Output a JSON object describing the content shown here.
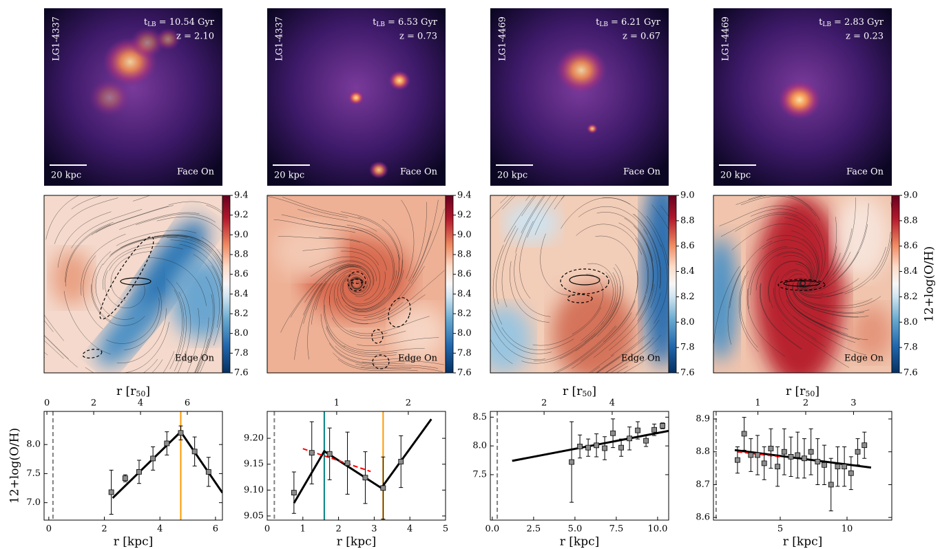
{
  "images": [
    {
      "id": "LG1-4337",
      "lookback_symbol": "t",
      "lookback_sub": "LB",
      "lookback": "= 10.54 Gyr",
      "redshift": "z = 2.10",
      "scale_bar": "20 kpc",
      "view": "Face On"
    },
    {
      "id": "LG1-4337",
      "lookback_symbol": "t",
      "lookback_sub": "LB",
      "lookback": "= 6.53 Gyr",
      "redshift": "z = 0.73",
      "scale_bar": "20 kpc",
      "view": "Face On"
    },
    {
      "id": "LG1-4469",
      "lookback_symbol": "t",
      "lookback_sub": "LB",
      "lookback": "= 6.21 Gyr",
      "redshift": "z = 0.67",
      "scale_bar": "20 kpc",
      "view": "Face On"
    },
    {
      "id": "LG1-4469",
      "lookback_symbol": "t",
      "lookback_sub": "LB",
      "lookback": "= 2.83 Gyr",
      "redshift": "z = 0.23",
      "scale_bar": "20 kpc",
      "view": "Face On"
    }
  ],
  "maps": [
    {
      "view": "Edge On",
      "clim": [
        7.6,
        9.4
      ],
      "colorbar_ticks": [
        7.6,
        7.8,
        {
          "value": 8,
          "label": "8.0"
        },
        8.2,
        8.4,
        8.6,
        8.8,
        {
          "value": 9,
          "label": "9.0"
        },
        9.2,
        9.4
      ]
    },
    {
      "view": "Edge On",
      "clim": [
        7.6,
        9.4
      ],
      "colorbar_ticks": [
        7.6,
        7.8,
        {
          "value": 8,
          "label": "8.0"
        },
        8.2,
        8.4,
        8.6,
        8.8,
        {
          "value": 9,
          "label": "9.0"
        },
        9.2,
        9.4
      ]
    },
    {
      "view": "Edge On",
      "clim": [
        7.6,
        9.0
      ],
      "colorbar_ticks": [
        7.6,
        7.8,
        {
          "value": 8,
          "label": "8.0"
        },
        8.2,
        8.4,
        8.6,
        8.8,
        {
          "value": 9,
          "label": "9.0"
        }
      ]
    },
    {
      "view": "Edge On",
      "clim": [
        7.6,
        9.0
      ],
      "colorbar_ticks": [
        7.6,
        7.8,
        {
          "value": 8,
          "label": "8.0"
        },
        8.2,
        8.4,
        8.6,
        8.8,
        {
          "value": 9,
          "label": "9.0"
        }
      ],
      "colorbar_label": "12+log(O/H)"
    }
  ],
  "chart_data": [
    {
      "type": "errorbar",
      "xlabel": "r [kpc]",
      "ylabel": "12+log(O/H)",
      "x2label": {
        "text": "r [r",
        "sub": "50",
        "end": "]"
      },
      "xlim": [
        -0.17,
        6.25
      ],
      "xticks": [
        0,
        2,
        4,
        6
      ],
      "x2lim": [
        -0.12,
        7.5
      ],
      "x2ticks": [
        0,
        2,
        4,
        6
      ],
      "ylim": [
        6.7,
        8.57
      ],
      "yticks": [
        {
          "value": 7,
          "label": "7.0"
        },
        7.5,
        {
          "value": 8,
          "label": "8.0"
        }
      ],
      "x": [
        2.25,
        2.75,
        3.25,
        3.75,
        4.25,
        4.75,
        5.25,
        5.75
      ],
      "values": [
        7.18,
        7.42,
        7.53,
        7.76,
        8.02,
        8.2,
        7.88,
        7.53
      ],
      "errors": [
        0.38,
        0.06,
        0.2,
        0.2,
        0.2,
        0.12,
        0.25,
        0.25
      ],
      "marker_color": "#8c8c8c",
      "fits": [
        {
          "color": "#000000",
          "dash": false,
          "x": [
            2.3,
            4.75,
            6.25
          ],
          "values": [
            7.08,
            8.22,
            7.17
          ]
        }
      ],
      "vlines": [
        {
          "value": 0.15,
          "color": "#808080",
          "dash": true
        },
        {
          "value": 4.75,
          "color": "#ff9900",
          "dash": false
        }
      ]
    },
    {
      "type": "errorbar",
      "xlabel": "r [kpc]",
      "xlim": [
        0,
        5
      ],
      "xticks": [
        0,
        1,
        2,
        3,
        4,
        5
      ],
      "x2lim": [
        0.03,
        2.52
      ],
      "x2ticks": [
        1,
        2
      ],
      "ylim": [
        9.042,
        9.252
      ],
      "yticks": [
        9.05,
        {
          "value": 9.1,
          "label": "9.10"
        },
        9.15,
        {
          "value": 9.2,
          "label": "9.20"
        }
      ],
      "x": [
        0.75,
        1.25,
        1.75,
        2.25,
        2.75,
        3.25,
        3.75
      ],
      "values": [
        9.095,
        9.172,
        9.17,
        9.152,
        9.124,
        9.104,
        9.155
      ],
      "errors": [
        0.04,
        0.06,
        0.05,
        0.06,
        0.05,
        0.06,
        0.05
      ],
      "marker_color": "#8c8c8c",
      "fits": [
        {
          "color": "#000000",
          "dash": false,
          "x": [
            0.75,
            1.6,
            3.2,
            4.6
          ],
          "values": [
            9.075,
            9.175,
            9.104,
            9.237
          ]
        },
        {
          "color": "#ff0000",
          "dash": true,
          "x": [
            1.0,
            2.9
          ],
          "values": [
            9.18,
            9.136
          ]
        }
      ],
      "vlines": [
        {
          "value": 0.2,
          "color": "#808080",
          "dash": true
        },
        {
          "value": 1.6,
          "color": "#008080",
          "dash": false
        },
        {
          "value": 3.25,
          "color": "#ff9900",
          "dash": false
        }
      ]
    },
    {
      "type": "errorbar",
      "xlabel": "r [kpc]",
      "x2label": {
        "text": "r [r",
        "sub": "50",
        "end": "]"
      },
      "xlim": [
        -0.12,
        10.67
      ],
      "xticks": [
        {
          "value": 0,
          "label": "0.0"
        },
        2.5,
        {
          "value": 5,
          "label": "5.0"
        },
        7.5,
        {
          "value": 10,
          "label": "10.0"
        }
      ],
      "x2lim": [
        0.42,
        5.66
      ],
      "x2ticks": [
        2,
        4
      ],
      "ylim": [
        6.71,
        8.6
      ],
      "yticks": [
        7.5,
        {
          "value": 8,
          "label": "8.0"
        },
        8.5
      ],
      "x": [
        4.8,
        5.3,
        5.8,
        6.3,
        6.8,
        7.3,
        7.8,
        8.3,
        8.8,
        9.3,
        9.8,
        10.3
      ],
      "values": [
        7.72,
        7.99,
        7.97,
        8.01,
        7.96,
        8.22,
        7.97,
        8.13,
        8.27,
        8.09,
        8.28,
        8.35
      ],
      "errors": [
        0.7,
        0.2,
        0.15,
        0.2,
        0.2,
        0.25,
        0.15,
        0.2,
        0.15,
        0.1,
        0.1,
        0.05
      ],
      "marker_color": "#8c8c8c",
      "fits": [
        {
          "color": "#000000",
          "dash": false,
          "x": [
            1.2,
            11
          ],
          "values": [
            7.74,
            8.28
          ]
        }
      ],
      "vlines": [
        {
          "value": 0.3,
          "color": "#808080",
          "dash": true
        }
      ]
    },
    {
      "type": "errorbar",
      "xlabel": "r [kpc]",
      "x2label": {
        "text": "r [r",
        "sub": "50",
        "end": "]"
      },
      "xlim": [
        0,
        13.35
      ],
      "xticks": [
        5,
        10
      ],
      "x2lim": [
        0.07,
        3.8
      ],
      "x2ticks": [
        1,
        2,
        3
      ],
      "ylim": [
        8.592,
        8.923
      ],
      "yticks": [
        8.6,
        8.7,
        8.8,
        8.9
      ],
      "x": [
        1.8,
        2.3,
        2.8,
        3.3,
        3.8,
        4.3,
        4.8,
        5.3,
        5.8,
        6.3,
        6.8,
        7.3,
        7.8,
        8.3,
        8.8,
        9.3,
        9.8,
        10.3,
        10.8,
        11.3
      ],
      "values": [
        8.775,
        8.855,
        8.79,
        8.79,
        8.765,
        8.81,
        8.755,
        8.8,
        8.785,
        8.79,
        8.78,
        8.8,
        8.77,
        8.76,
        8.7,
        8.755,
        8.755,
        8.735,
        8.8,
        8.82
      ],
      "errors": [
        0.04,
        0.05,
        0.05,
        0.06,
        0.05,
        0.06,
        0.06,
        0.07,
        0.06,
        0.07,
        0.06,
        0.07,
        0.07,
        0.06,
        0.08,
        0.06,
        0.06,
        0.05,
        0.04,
        0.04
      ],
      "marker_color": "#8c8c8c",
      "fits": [
        {
          "color": "#000000",
          "dash": false,
          "x": [
            1.6,
            11.8
          ],
          "values": [
            8.805,
            8.752
          ]
        },
        {
          "color": "#ff0000",
          "dash": true,
          "x": [
            1.8,
            5
          ],
          "values": [
            8.8,
            8.785
          ]
        }
      ],
      "vlines": [
        {
          "value": 0.2,
          "color": "#808080",
          "dash": true
        }
      ]
    }
  ]
}
